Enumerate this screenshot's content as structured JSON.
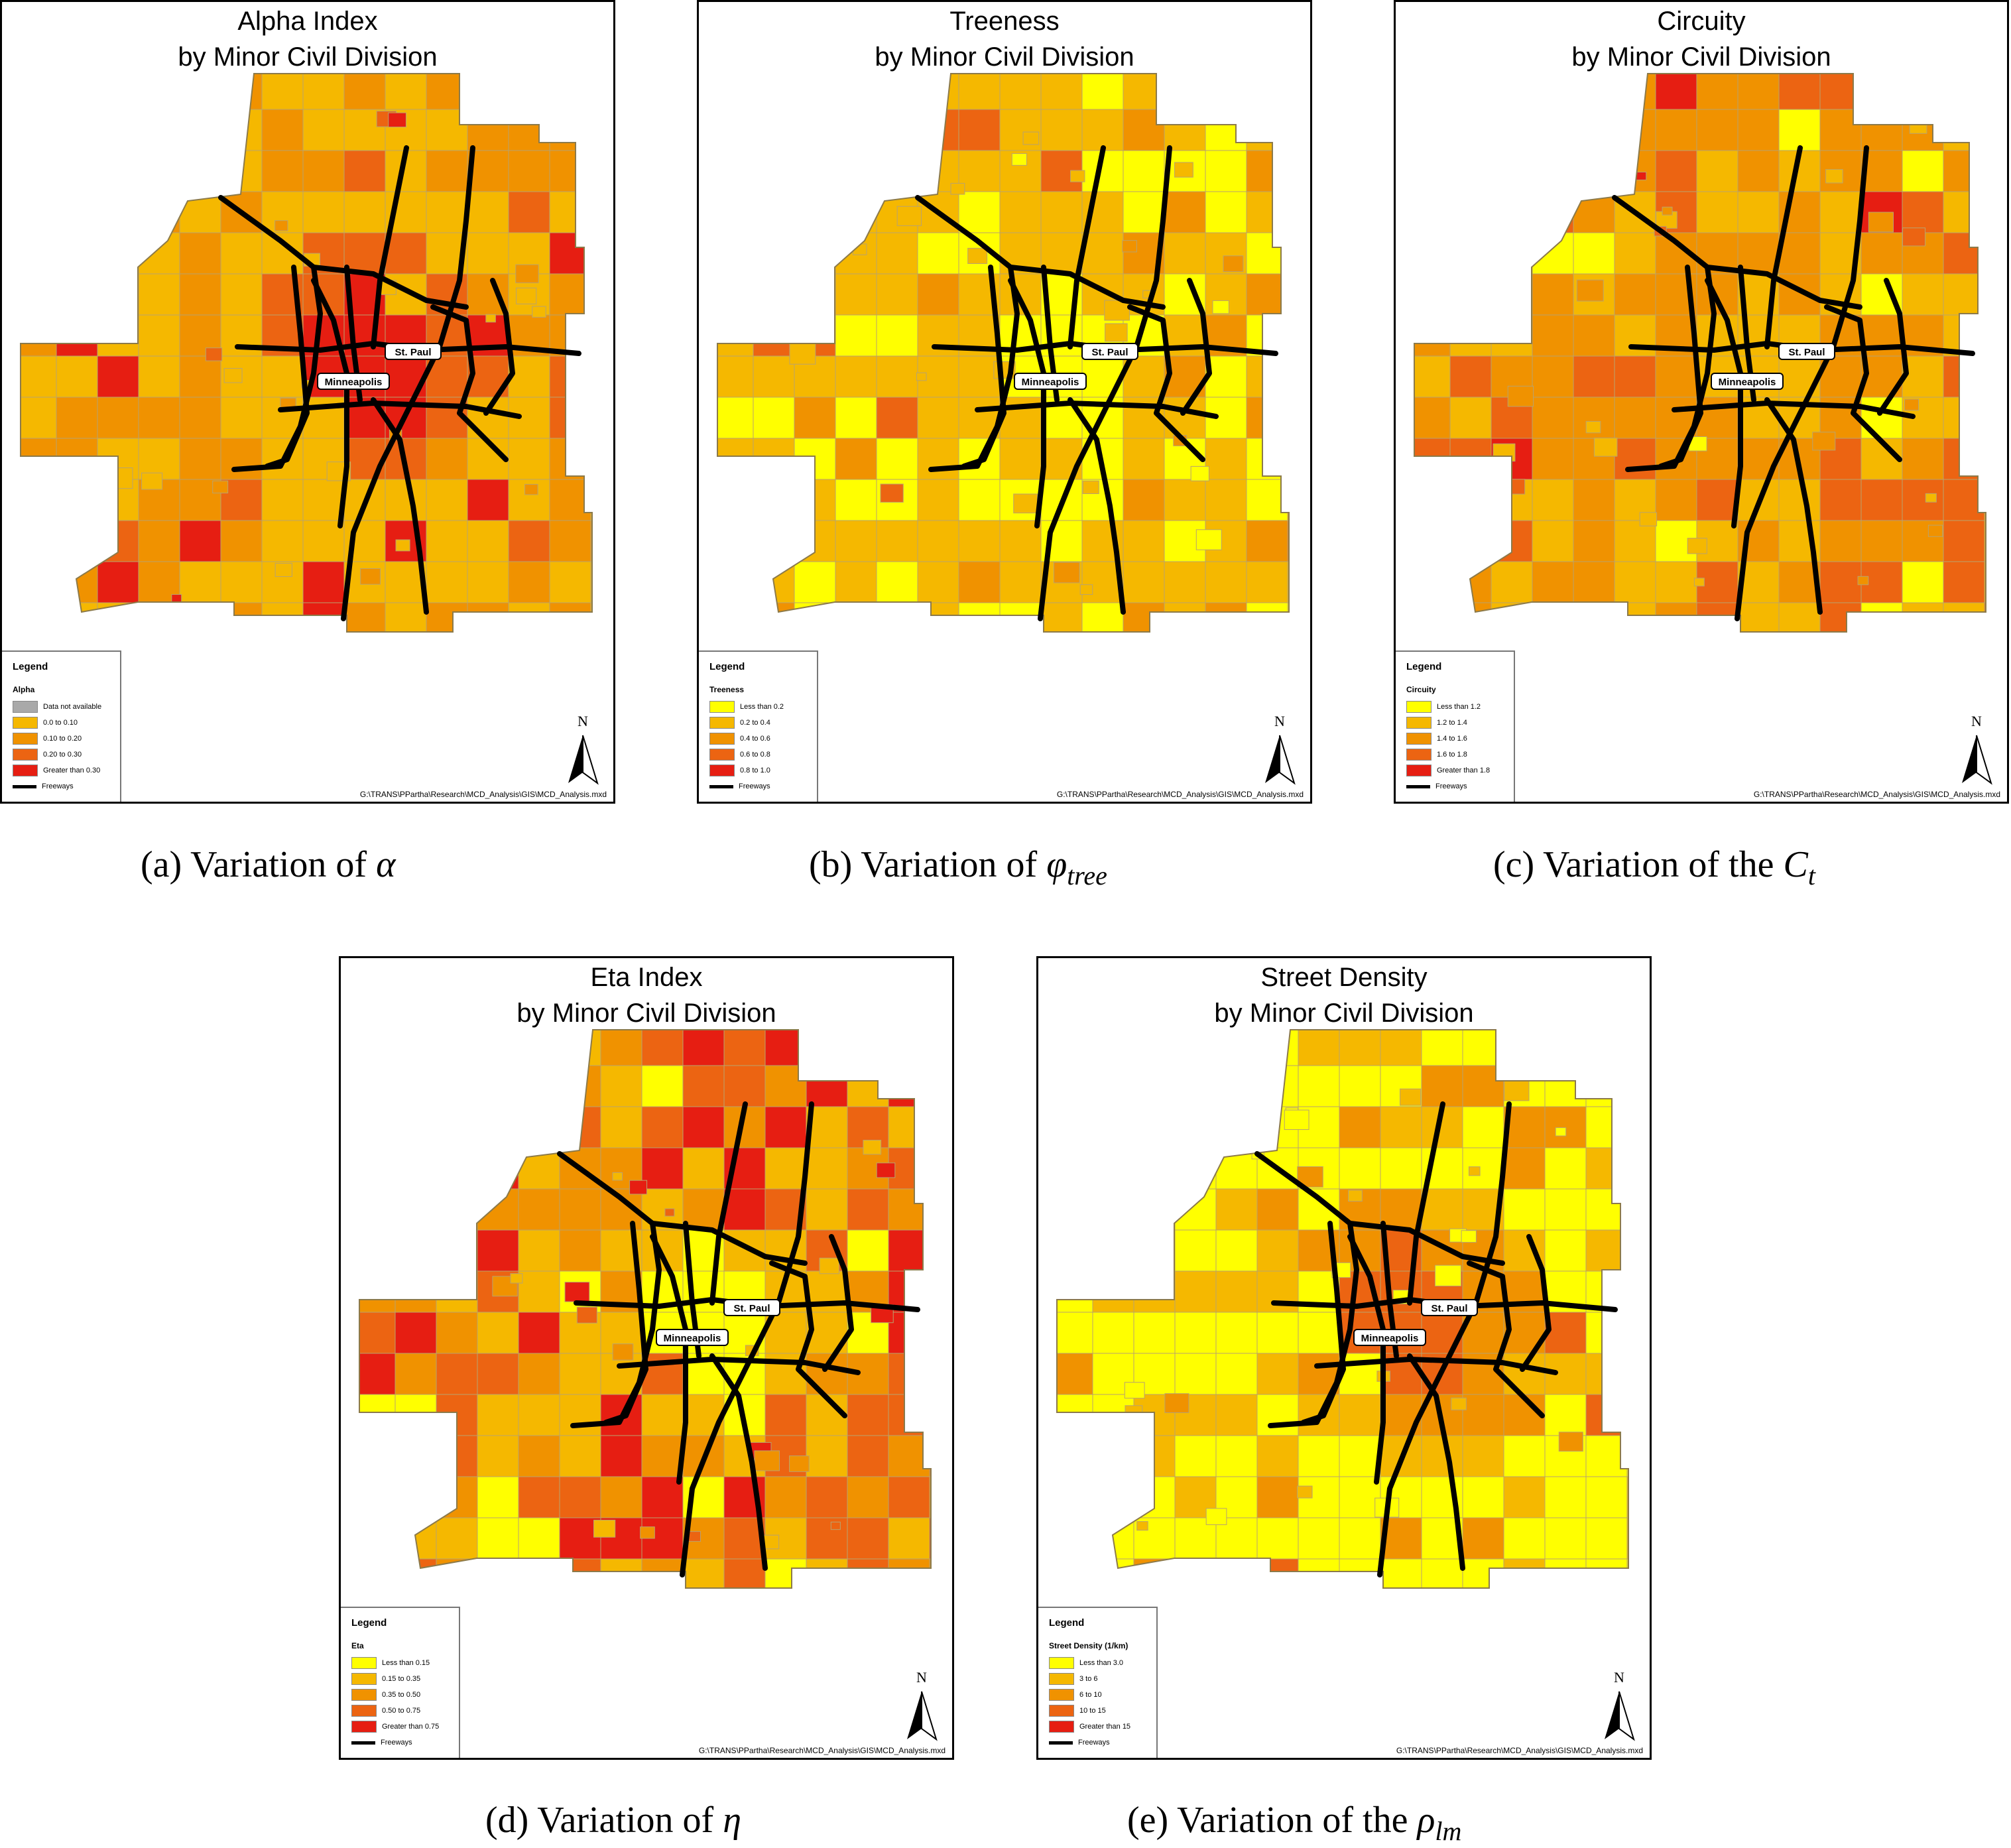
{
  "panels": [
    {
      "key": "a",
      "title_line1": "Alpha Index",
      "title_line2": "by Minor Civil Division",
      "legend": {
        "heading": "Legend",
        "title": "Alpha",
        "classes": [
          {
            "label": "Data not available",
            "color": "#a9a9a9"
          },
          {
            "label": "0.0 to 0.10",
            "color": "#f5b800"
          },
          {
            "label": "0.10 to 0.20",
            "color": "#f09200"
          },
          {
            "label": "0.20 to 0.30",
            "color": "#ec6412"
          },
          {
            "label": "Greater than 0.30",
            "color": "#e61e12"
          }
        ],
        "freeways_label": "Freeways"
      },
      "path": "G:\\TRANS\\PPartha\\Research\\MCD_Analysis\\GIS\\MCD_Analysis.mxd",
      "north": "N",
      "caption_text": "(a)  Variation of ",
      "caption_symbol": "α",
      "caption_sub": ""
    },
    {
      "key": "b",
      "title_line1": "Treeness",
      "title_line2": "by Minor Civil Division",
      "legend": {
        "heading": "Legend",
        "title": "Treeness",
        "classes": [
          {
            "label": "Less than 0.2",
            "color": "#ffff00"
          },
          {
            "label": "0.2 to 0.4",
            "color": "#f5b800"
          },
          {
            "label": "0.4 to 0.6",
            "color": "#f09200"
          },
          {
            "label": "0.6 to 0.8",
            "color": "#ec6412"
          },
          {
            "label": "0.8 to 1.0",
            "color": "#e61e12"
          }
        ],
        "freeways_label": "Freeways"
      },
      "path": "G:\\TRANS\\PPartha\\Research\\MCD_Analysis\\GIS\\MCD_Analysis.mxd",
      "north": "N",
      "caption_text": "(b)  Variation of ",
      "caption_symbol": "φ",
      "caption_sub": "tree"
    },
    {
      "key": "c",
      "title_line1": "Circuity",
      "title_line2": "by Minor Civil Division",
      "legend": {
        "heading": "Legend",
        "title": "Circuity",
        "classes": [
          {
            "label": "Less than 1.2",
            "color": "#ffff00"
          },
          {
            "label": "1.2 to 1.4",
            "color": "#f5b800"
          },
          {
            "label": "1.4 to 1.6",
            "color": "#f09200"
          },
          {
            "label": "1.6 to 1.8",
            "color": "#ec6412"
          },
          {
            "label": "Greater than 1.8",
            "color": "#e61e12"
          }
        ],
        "freeways_label": "Freeways"
      },
      "path": "G:\\TRANS\\PPartha\\Research\\MCD_Analysis\\GIS\\MCD_Analysis.mxd",
      "north": "N",
      "caption_text": "(c)  Variation of the ",
      "caption_symbol": "C",
      "caption_sub": "t"
    },
    {
      "key": "d",
      "title_line1": "Eta Index",
      "title_line2": "by Minor Civil Division",
      "legend": {
        "heading": "Legend",
        "title": "Eta",
        "classes": [
          {
            "label": "Less than 0.15",
            "color": "#ffff00"
          },
          {
            "label": "0.15 to 0.35",
            "color": "#f5b800"
          },
          {
            "label": "0.35 to 0.50",
            "color": "#f09200"
          },
          {
            "label": "0.50 to 0.75",
            "color": "#ec6412"
          },
          {
            "label": "Greater than 0.75",
            "color": "#e61e12"
          }
        ],
        "freeways_label": "Freeways"
      },
      "path": "G:\\TRANS\\PPartha\\Research\\MCD_Analysis\\GIS\\MCD_Analysis.mxd",
      "north": "N",
      "caption_text": "(d)  Variation of ",
      "caption_symbol": "η",
      "caption_sub": ""
    },
    {
      "key": "e",
      "title_line1": "Street Density",
      "title_line2": "by Minor Civil Division",
      "legend": {
        "heading": "Legend",
        "title": "Street Density (1/km)",
        "classes": [
          {
            "label": "Less than 3.0",
            "color": "#ffff00"
          },
          {
            "label": "3 to 6",
            "color": "#f5b800"
          },
          {
            "label": "6 to 10",
            "color": "#f09200"
          },
          {
            "label": "10 to 15",
            "color": "#ec6412"
          },
          {
            "label": "Greater than 15",
            "color": "#e61e12"
          }
        ],
        "freeways_label": "Freeways"
      },
      "path": "G:\\TRANS\\PPartha\\Research\\MCD_Analysis\\GIS\\MCD_Analysis.mxd",
      "north": "N",
      "caption_text": "(e)  Variation of the ",
      "caption_symbol": "ρ",
      "caption_sub": "lm"
    }
  ],
  "city_labels": {
    "st_paul": "St. Paul",
    "minneapolis": "Minneapolis"
  }
}
